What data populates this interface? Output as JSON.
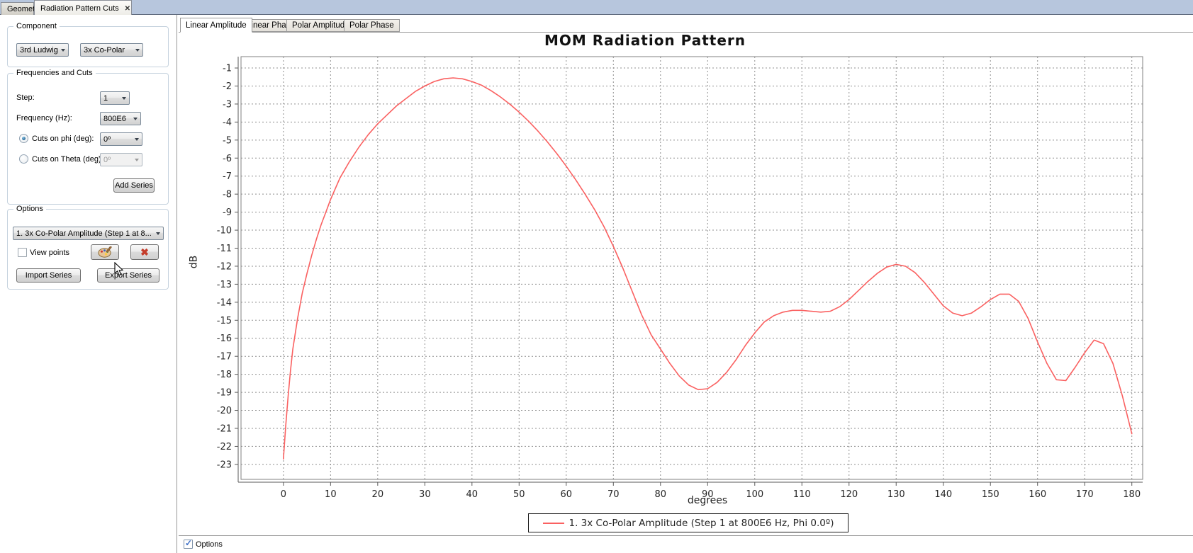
{
  "window": {
    "tabs": [
      {
        "label": "Geometry",
        "active": false
      },
      {
        "label": "Radiation Pattern Cuts",
        "active": true
      }
    ],
    "close_icon": "✕"
  },
  "sidebar": {
    "component": {
      "legend": "Component",
      "definition_value": "3rd Ludwig",
      "component_value": "3x Co-Polar"
    },
    "frequencies": {
      "legend": "Frequencies and Cuts",
      "step_label": "Step:",
      "step_value": "1",
      "frequency_label": "Frequency (Hz):",
      "frequency_value": "800E6",
      "phi_label": "Cuts on phi (deg):",
      "phi_value": "0º",
      "phi_selected": true,
      "theta_label": "Cuts on Theta (deg):",
      "theta_value": "0º",
      "theta_selected": false,
      "add_series_label": "Add Series"
    },
    "options": {
      "legend": "Options",
      "series_value": "1. 3x Co-Polar Amplitude (Step 1 at 8...",
      "view_points_label": "View points",
      "view_points_checked": false,
      "delete_icon": "✖",
      "import_label": "Import Series",
      "export_label": "Export Series"
    }
  },
  "main": {
    "tabs": [
      {
        "label": "Linear Amplitude",
        "active": true
      },
      {
        "label": "Linear Phase",
        "active": false
      },
      {
        "label": "Polar Amplitude",
        "active": false
      },
      {
        "label": "Polar Phase",
        "active": false
      }
    ],
    "bottom_bar": {
      "options_label": "Options",
      "options_checked": true
    }
  },
  "chart_data": {
    "type": "line",
    "title": "MOM Radiation Pattern",
    "xlabel": "degrees",
    "ylabel": "dB",
    "xlim": [
      -9,
      182.3
    ],
    "ylim": [
      -23.83,
      -0.37
    ],
    "x_ticks": [
      0,
      10,
      20,
      30,
      40,
      50,
      60,
      70,
      80,
      90,
      100,
      110,
      120,
      130,
      140,
      150,
      160,
      170,
      180
    ],
    "y_ticks": [
      -1,
      -2,
      -3,
      -4,
      -5,
      -6,
      -7,
      -8,
      -9,
      -10,
      -11,
      -12,
      -13,
      -14,
      -15,
      -16,
      -17,
      -18,
      -19,
      -20,
      -21,
      -22,
      -23
    ],
    "grid": true,
    "legend_position": "bottom-center",
    "series": [
      {
        "name": "1. 3x Co-Polar Amplitude (Step 1 at 800E6 Hz, Phi 0.0º)",
        "color": "#fa6161",
        "x": [
          0,
          0.5,
          1,
          1.5,
          2,
          3,
          4,
          5,
          6,
          7,
          8,
          9,
          10,
          12,
          14,
          16,
          18,
          20,
          22,
          24,
          26,
          28,
          30,
          32,
          34,
          36,
          38,
          40,
          42,
          44,
          46,
          48,
          50,
          52,
          54,
          56,
          58,
          60,
          62,
          64,
          66,
          68,
          70,
          72,
          74,
          76,
          78,
          80,
          82,
          84,
          86,
          88,
          90,
          92,
          94,
          96,
          98,
          100,
          102,
          104,
          106,
          108,
          110,
          112,
          114,
          116,
          118,
          120,
          122,
          124,
          126,
          128,
          130,
          132,
          134,
          136,
          138,
          140,
          142,
          144,
          146,
          148,
          150,
          152,
          154,
          156,
          158,
          160,
          162,
          164,
          166,
          168,
          170,
          172,
          174,
          176,
          178,
          180
        ],
        "y": [
          -22.7,
          -20.8,
          -19.2,
          -17.8,
          -16.6,
          -14.9,
          -13.5,
          -12.4,
          -11.4,
          -10.5,
          -9.7,
          -9.0,
          -8.3,
          -7.1,
          -6.2,
          -5.4,
          -4.7,
          -4.1,
          -3.6,
          -3.1,
          -2.7,
          -2.3,
          -2.0,
          -1.75,
          -1.6,
          -1.55,
          -1.6,
          -1.75,
          -1.95,
          -2.25,
          -2.6,
          -3.0,
          -3.45,
          -3.95,
          -4.5,
          -5.1,
          -5.75,
          -6.45,
          -7.2,
          -8.0,
          -8.85,
          -9.8,
          -10.9,
          -12.1,
          -13.4,
          -14.7,
          -15.8,
          -16.6,
          -17.4,
          -18.1,
          -18.6,
          -18.85,
          -18.8,
          -18.45,
          -17.9,
          -17.2,
          -16.4,
          -15.7,
          -15.1,
          -14.75,
          -14.55,
          -14.45,
          -14.45,
          -14.5,
          -14.55,
          -14.5,
          -14.25,
          -13.85,
          -13.35,
          -12.85,
          -12.4,
          -12.05,
          -11.9,
          -12.0,
          -12.35,
          -12.9,
          -13.55,
          -14.2,
          -14.6,
          -14.75,
          -14.6,
          -14.25,
          -13.85,
          -13.55,
          -13.55,
          -13.95,
          -14.9,
          -16.2,
          -17.4,
          -18.3,
          -18.35,
          -17.6,
          -16.8,
          -16.1,
          -16.3,
          -17.4,
          -19.2,
          -21.3
        ]
      }
    ]
  }
}
